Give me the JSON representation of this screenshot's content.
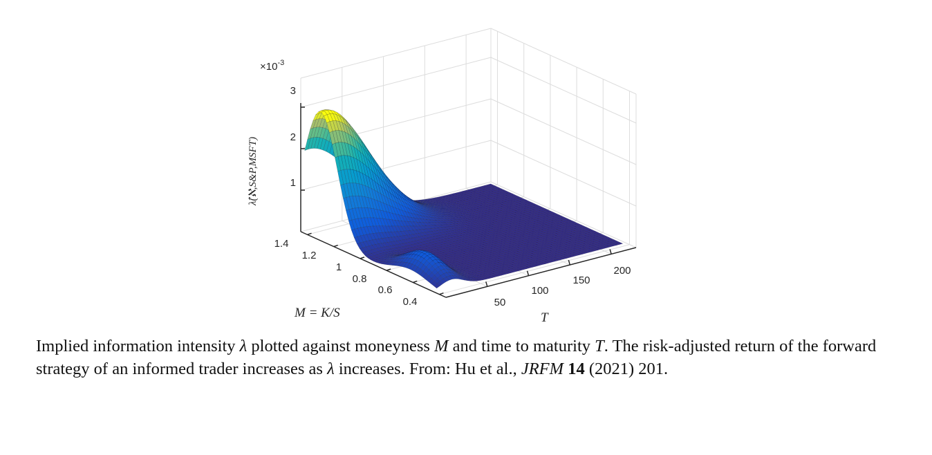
{
  "chart_data": {
    "type": "surface",
    "title": "",
    "zlabel": "λ̂(ℵ,S&P,MSFT)",
    "z_scale_label": "×10",
    "z_scale_exponent": "-3",
    "xlabel": "M = K/S",
    "ylabel": "T",
    "x_ticks": [
      "1.4",
      "1.2",
      "1",
      "0.8",
      "0.6",
      "0.4"
    ],
    "y_ticks": [
      "50",
      "100",
      "150",
      "200"
    ],
    "z_ticks": [
      "3",
      "2",
      "1"
    ],
    "xlim": [
      0.35,
      1.45
    ],
    "ylim": [
      0,
      230
    ],
    "zlim": [
      0,
      0.003
    ],
    "colormap": "parula",
    "grid": true,
    "surface_peak": {
      "M": 1.3,
      "T": 10,
      "lambda": 0.0031
    }
  },
  "caption": {
    "part1": "Implied information intensity ",
    "sym_lambda": "λ",
    "part2": " plotted against moneyness ",
    "sym_M": "M",
    "part3": " and time to maturity ",
    "sym_T": "T",
    "part4": ".  The risk-adjusted return of the forward strategy of an informed trader increases as ",
    "part5": " increases. From: Hu et al., ",
    "journal": "JRFM",
    "volume": "14",
    "part6": " (2021) 201."
  }
}
